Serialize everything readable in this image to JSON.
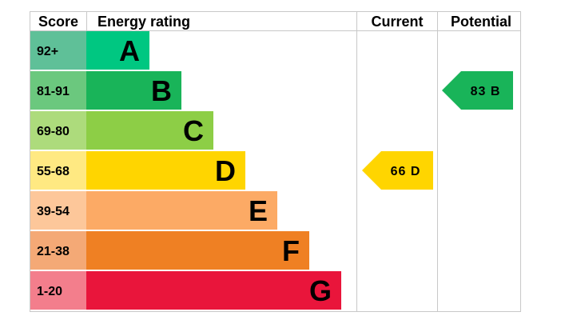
{
  "header": {
    "score": "Score",
    "rating": "Energy rating",
    "current": "Current",
    "potential": "Potential"
  },
  "chart_data": {
    "type": "bar",
    "categories": [
      "A",
      "B",
      "C",
      "D",
      "E",
      "F",
      "G"
    ],
    "bands": [
      {
        "letter": "A",
        "score": "92+",
        "score_color": "#5fc098",
        "bar_color": "#00c781",
        "length": 1
      },
      {
        "letter": "B",
        "score": "81-91",
        "score_color": "#6bc87e",
        "bar_color": "#19b459",
        "length": 2
      },
      {
        "letter": "C",
        "score": "69-80",
        "score_color": "#addb7c",
        "bar_color": "#8dce46",
        "length": 3
      },
      {
        "letter": "D",
        "score": "55-68",
        "score_color": "#ffe982",
        "bar_color": "#ffd500",
        "length": 4
      },
      {
        "letter": "E",
        "score": "39-54",
        "score_color": "#fdc79a",
        "bar_color": "#fcaa65",
        "length": 5
      },
      {
        "letter": "F",
        "score": "21-38",
        "score_color": "#f4a976",
        "bar_color": "#ef8023",
        "length": 6
      },
      {
        "letter": "G",
        "score": "1-20",
        "score_color": "#f37e8c",
        "bar_color": "#e9153b",
        "length": 7
      }
    ],
    "current": {
      "value": 66,
      "band": "D",
      "label": "66 D",
      "color": "#ffd500",
      "text_color": "#000000"
    },
    "potential": {
      "value": 83,
      "band": "B",
      "label": "83 B",
      "color": "#19b459",
      "text_color": "#000000"
    }
  }
}
